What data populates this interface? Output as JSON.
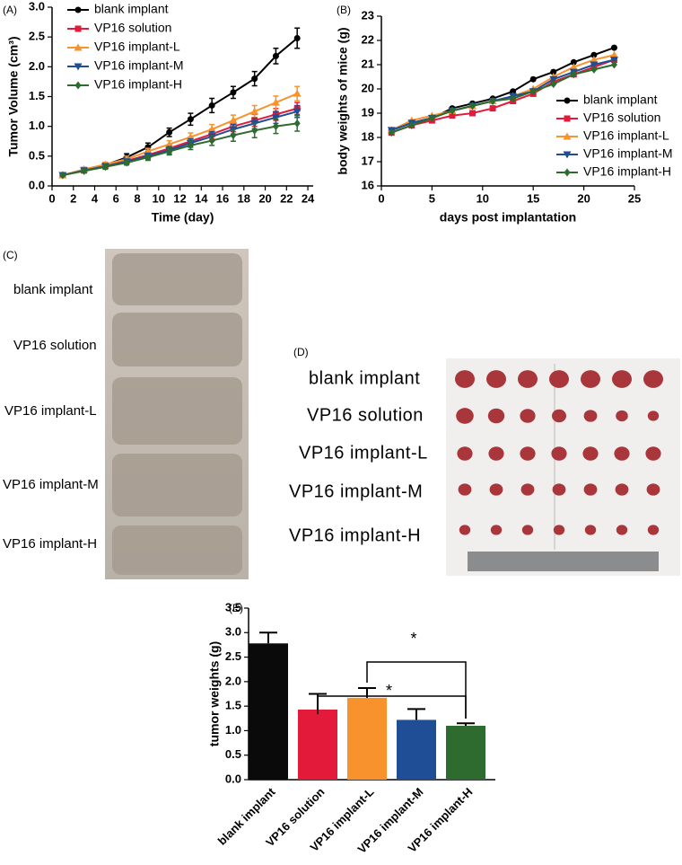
{
  "chart_data": [
    {
      "type": "line",
      "panel_label": "(A)",
      "x_label": "Time (day)",
      "y_label": "Tumor Volume (cm³)",
      "x": [
        1,
        3,
        5,
        7,
        9,
        11,
        13,
        15,
        17,
        19,
        21,
        23
      ],
      "xlim": [
        0,
        24.5
      ],
      "xticks": [
        0,
        2,
        4,
        6,
        8,
        10,
        12,
        14,
        16,
        18,
        20,
        22,
        24
      ],
      "ylim": [
        0,
        3
      ],
      "yticks": [
        {
          "value": 0,
          "label": "0.0"
        },
        {
          "value": 0.5,
          "label": "0.5"
        },
        {
          "value": 1,
          "label": "1.0"
        },
        {
          "value": 1.5,
          "label": "1.5"
        },
        {
          "value": 2,
          "label": "2.0"
        },
        {
          "value": 2.5,
          "label": "2.5"
        },
        {
          "value": 3,
          "label": "3.0"
        }
      ],
      "legend": "upper left",
      "series": [
        {
          "name": "blank implant",
          "color": "#000000",
          "values": [
            0.18,
            0.27,
            0.35,
            0.48,
            0.65,
            0.9,
            1.12,
            1.35,
            1.57,
            1.8,
            2.18,
            2.48
          ],
          "errors": [
            0.02,
            0.04,
            0.04,
            0.06,
            0.07,
            0.07,
            0.1,
            0.12,
            0.1,
            0.12,
            0.13,
            0.17
          ]
        },
        {
          "name": "VP16 solution",
          "color": "#e31a3a",
          "values": [
            0.18,
            0.26,
            0.34,
            0.42,
            0.52,
            0.63,
            0.75,
            0.87,
            1.0,
            1.1,
            1.2,
            1.3
          ],
          "errors": [
            0.02,
            0.03,
            0.04,
            0.05,
            0.05,
            0.06,
            0.07,
            0.08,
            0.09,
            0.1,
            0.1,
            0.1
          ]
        },
        {
          "name": "VP16 implant-L",
          "color": "#f7922d",
          "values": [
            0.18,
            0.28,
            0.36,
            0.45,
            0.58,
            0.7,
            0.82,
            0.95,
            1.1,
            1.25,
            1.4,
            1.55
          ],
          "errors": [
            0.02,
            0.03,
            0.04,
            0.05,
            0.05,
            0.06,
            0.07,
            0.08,
            0.09,
            0.1,
            0.11,
            0.12
          ]
        },
        {
          "name": "VP16 implant-M",
          "color": "#1f4e96",
          "values": [
            0.18,
            0.26,
            0.33,
            0.41,
            0.5,
            0.6,
            0.72,
            0.83,
            0.95,
            1.05,
            1.15,
            1.25
          ],
          "errors": [
            0.02,
            0.03,
            0.04,
            0.04,
            0.05,
            0.06,
            0.07,
            0.08,
            0.08,
            0.09,
            0.1,
            0.1
          ]
        },
        {
          "name": "VP16 implant-H",
          "color": "#2e6b2e",
          "values": [
            0.18,
            0.25,
            0.32,
            0.39,
            0.48,
            0.58,
            0.68,
            0.76,
            0.85,
            0.93,
            1.0,
            1.05
          ],
          "errors": [
            0.02,
            0.03,
            0.04,
            0.04,
            0.05,
            0.06,
            0.07,
            0.08,
            0.1,
            0.12,
            0.12,
            0.13
          ]
        }
      ]
    },
    {
      "type": "line",
      "panel_label": "(B)",
      "x_label": "days post implantation",
      "y_label": "body weights of mice  (g)",
      "x": [
        1,
        3,
        5,
        7,
        9,
        11,
        13,
        15,
        17,
        19,
        21,
        23
      ],
      "xlim": [
        0,
        25
      ],
      "xticks": [
        0,
        5,
        10,
        15,
        20,
        25
      ],
      "ylim": [
        16,
        23
      ],
      "yticks": [
        16,
        17,
        18,
        19,
        20,
        21,
        22,
        23
      ],
      "legend": "right",
      "series": [
        {
          "name": "blank implant",
          "color": "#000000",
          "values": [
            18.3,
            18.6,
            18.8,
            19.2,
            19.4,
            19.6,
            19.9,
            20.4,
            20.7,
            21.1,
            21.4,
            21.7
          ]
        },
        {
          "name": "VP16 solution",
          "color": "#e31a3a",
          "values": [
            18.2,
            18.5,
            18.7,
            18.9,
            19.0,
            19.2,
            19.5,
            19.8,
            20.3,
            20.6,
            20.9,
            21.2
          ]
        },
        {
          "name": "VP16 implant-L",
          "color": "#f7922d",
          "values": [
            18.3,
            18.7,
            18.9,
            19.1,
            19.3,
            19.5,
            19.7,
            20.0,
            20.5,
            20.9,
            21.2,
            21.4
          ]
        },
        {
          "name": "VP16 implant-M",
          "color": "#1f4e96",
          "values": [
            18.3,
            18.6,
            18.8,
            19.1,
            19.3,
            19.5,
            19.7,
            19.9,
            20.4,
            20.7,
            21.0,
            21.2
          ]
        },
        {
          "name": "VP16 implant-H",
          "color": "#2e6b2e",
          "values": [
            18.2,
            18.5,
            18.8,
            19.1,
            19.3,
            19.5,
            19.6,
            19.9,
            20.2,
            20.6,
            20.8,
            21.0
          ]
        }
      ]
    },
    {
      "type": "bar",
      "panel_label": "(E)",
      "y_label": "tumor weights (g)",
      "categories": [
        "blank implant",
        "VP16 solution",
        "VP16 implant-L",
        "VP16 implant-M",
        "VP16 implant-H"
      ],
      "values": [
        2.78,
        1.43,
        1.67,
        1.22,
        1.1
      ],
      "errors": [
        0.22,
        0.32,
        0.2,
        0.22,
        0.05
      ],
      "colors": [
        "#0a0a0a",
        "#e31a3a",
        "#f7922d",
        "#1f4e96",
        "#2e6b2e"
      ],
      "ylim": [
        0,
        3.5
      ],
      "yticks": [
        {
          "value": 0,
          "label": "0.0"
        },
        {
          "value": 0.5,
          "label": "0.5"
        },
        {
          "value": 1,
          "label": "1.0"
        },
        {
          "value": 1.5,
          "label": "1.5"
        },
        {
          "value": 2,
          "label": "2.0"
        },
        {
          "value": 2.5,
          "label": "2.5"
        },
        {
          "value": 3,
          "label": "3.0"
        },
        {
          "value": 3.5,
          "label": "3.5"
        }
      ],
      "annotations": [
        "*",
        "*"
      ]
    }
  ],
  "photos": [
    {
      "panel_label": "(C)",
      "labels": [
        "blank implant",
        "VP16 solution",
        "VP16 implant-L",
        "VP16 implant-M",
        "VP16 implant-H"
      ]
    },
    {
      "panel_label": "(D)",
      "labels": [
        "blank implant",
        "VP16 solution",
        "VP16 implant-L",
        "VP16 implant-M",
        "VP16 implant-H"
      ]
    }
  ]
}
